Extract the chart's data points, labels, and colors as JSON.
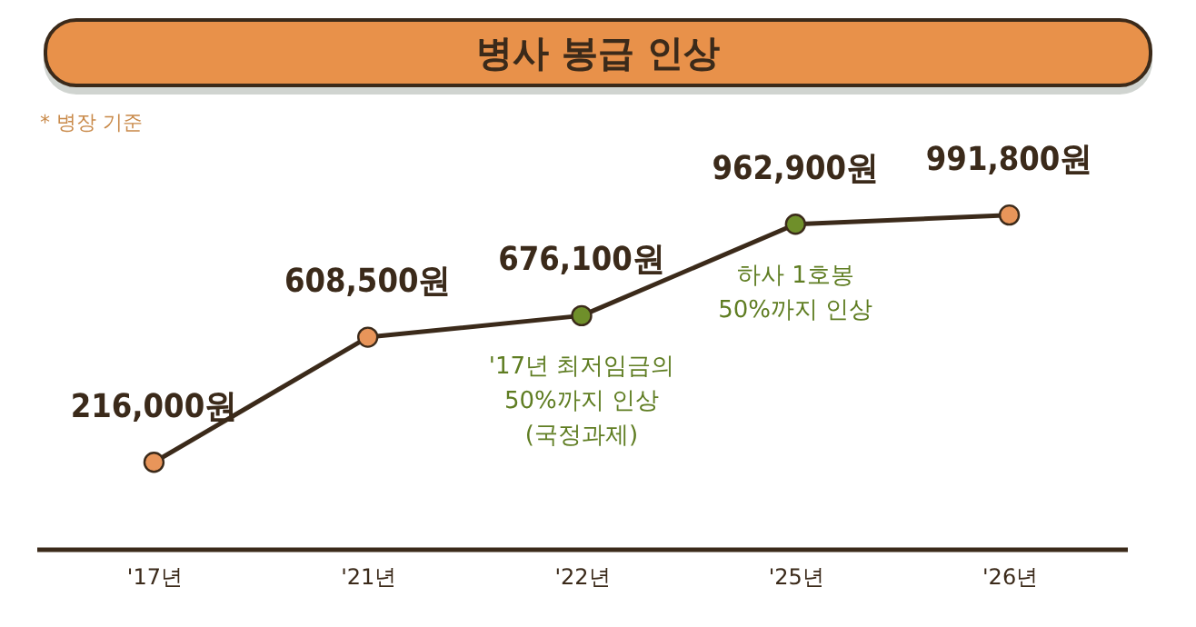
{
  "chart_data": {
    "type": "line",
    "title": "병사 봉급 인상",
    "subtitle": "* 병장 기준",
    "categories": [
      "'17년",
      "'21년",
      "'22년",
      "'25년",
      "'26년"
    ],
    "series": [
      {
        "color": "#3b2a1a",
        "colors": [
          "#e8955a",
          "#e8955a",
          "#6f8f2a",
          "#6f8f2a",
          "#e8955a"
        ],
        "values": [
          216000,
          608500,
          676100,
          962900,
          991800
        ],
        "value_labels": [
          "216,000원",
          "608,500원",
          "676,100원",
          "962,900원",
          "991,800원"
        ]
      }
    ],
    "marker": "circle",
    "line_style": "solid",
    "grid": false,
    "annotations": [
      {
        "text": "'17년 최저임금의\n50%까지 인상\n(국정과제)",
        "x": "'22년",
        "y": 676100
      },
      {
        "text": "하사 1호봉\n50%까지 인상",
        "x": "'25년",
        "y": 962900
      }
    ]
  }
}
